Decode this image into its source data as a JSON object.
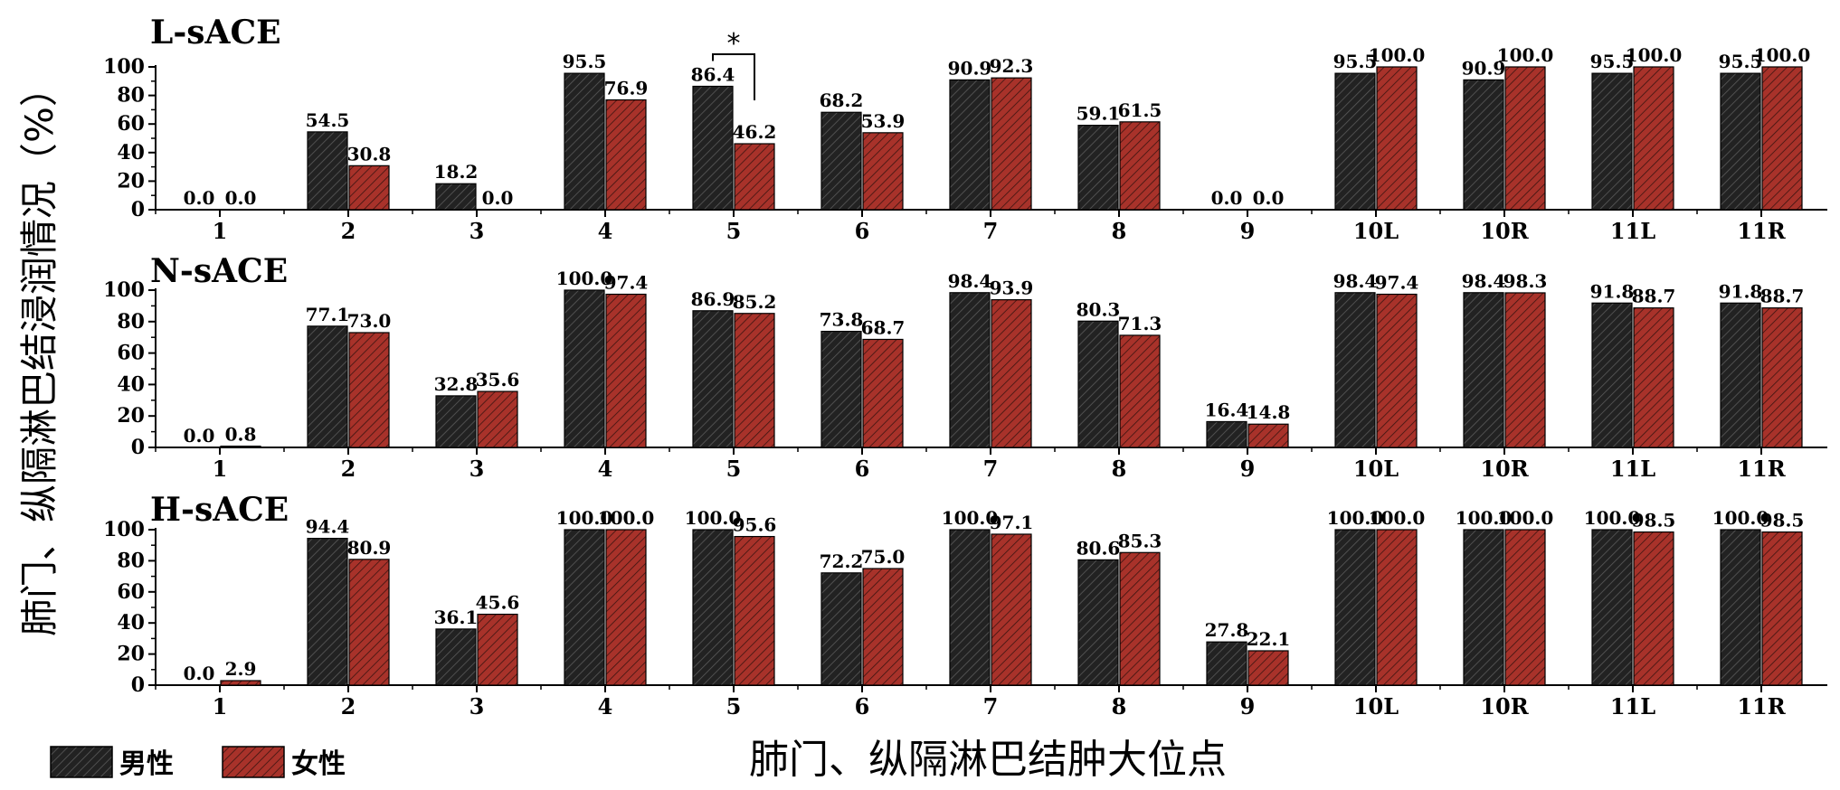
{
  "chart_data": {
    "type": "bar",
    "ylabel": "肺门、纵隔淋巴结浸润情况（%）",
    "xlabel": "肺门、纵隔淋巴结肿大位点",
    "categories": [
      "1",
      "2",
      "3",
      "4",
      "5",
      "6",
      "7",
      "8",
      "9",
      "10L",
      "10R",
      "11L",
      "11R"
    ],
    "yticks": [
      "0",
      "20",
      "40",
      "60",
      "80",
      "100"
    ],
    "ylim": [
      0,
      100
    ],
    "legend": {
      "placement": "bottom-left",
      "items": [
        {
          "name": "男性",
          "color": "#222222"
        },
        {
          "name": "女性",
          "color": "#a8322a"
        }
      ]
    },
    "panels": [
      {
        "title": "L-sACE",
        "series": [
          {
            "name": "男性",
            "values": [
              0.0,
              54.5,
              18.2,
              95.5,
              86.4,
              68.2,
              90.9,
              59.1,
              0.0,
              95.5,
              90.9,
              95.5,
              95.5
            ],
            "labels": [
              "0.0",
              "54.5",
              "18.2",
              "95.5",
              "86.4",
              "68.2",
              "90.9",
              "59.1",
              "0.0",
              "95.5",
              "90.9",
              "95.5",
              "95.5"
            ]
          },
          {
            "name": "女性",
            "values": [
              0.0,
              30.8,
              0.0,
              76.9,
              46.2,
              53.9,
              92.3,
              61.5,
              0.0,
              100.0,
              100.0,
              100.0,
              100.0
            ],
            "labels": [
              "0.0",
              "30.8",
              "0.0",
              "76.9",
              "46.2",
              "53.9",
              "92.3",
              "61.5",
              "0.0",
              "100.0",
              "100.0",
              "100.0",
              "100.0"
            ]
          }
        ],
        "annotation": {
          "text": "*",
          "category": "5"
        }
      },
      {
        "title": "N-sACE",
        "series": [
          {
            "name": "男性",
            "values": [
              0.0,
              77.1,
              32.8,
              100.0,
              86.9,
              73.8,
              98.4,
              80.3,
              16.4,
              98.4,
              98.4,
              91.8,
              91.8
            ],
            "labels": [
              "0.0",
              "77.1",
              "32.8",
              "100.0",
              "86.9",
              "73.8",
              "98.4",
              "80.3",
              "16.4",
              "98.4",
              "98.4",
              "91.8",
              "91.8"
            ]
          },
          {
            "name": "女性",
            "values": [
              0.8,
              73.0,
              35.6,
              97.4,
              85.2,
              68.7,
              93.9,
              71.3,
              14.8,
              97.4,
              98.3,
              88.7,
              88.7
            ],
            "labels": [
              "0.8",
              "73.0",
              "35.6",
              "97.4",
              "85.2",
              "68.7",
              "93.9",
              "71.3",
              "14.8",
              "97.4",
              "98.3",
              "88.7",
              "88.7"
            ]
          }
        ]
      },
      {
        "title": "H-sACE",
        "series": [
          {
            "name": "男性",
            "values": [
              0.0,
              94.4,
              36.1,
              100.0,
              100.0,
              72.2,
              100.0,
              80.6,
              27.8,
              100.0,
              100.0,
              100.0,
              100.0
            ],
            "labels": [
              "0.0",
              "94.4",
              "36.1",
              "100.0",
              "100.0",
              "72.2",
              "100.0",
              "80.6",
              "27.8",
              "100.0",
              "100.0",
              "100.0",
              "100.0"
            ]
          },
          {
            "name": "女性",
            "values": [
              2.9,
              80.9,
              45.6,
              100.0,
              95.6,
              75.0,
              97.1,
              85.3,
              22.1,
              100.0,
              100.0,
              98.5,
              98.5
            ],
            "labels": [
              "2.9",
              "80.9",
              "45.6",
              "100.0",
              "95.6",
              "75.0",
              "97.1",
              "85.3",
              "22.1",
              "100.0",
              "100.0",
              "98.5",
              "98.5"
            ]
          }
        ]
      }
    ]
  }
}
